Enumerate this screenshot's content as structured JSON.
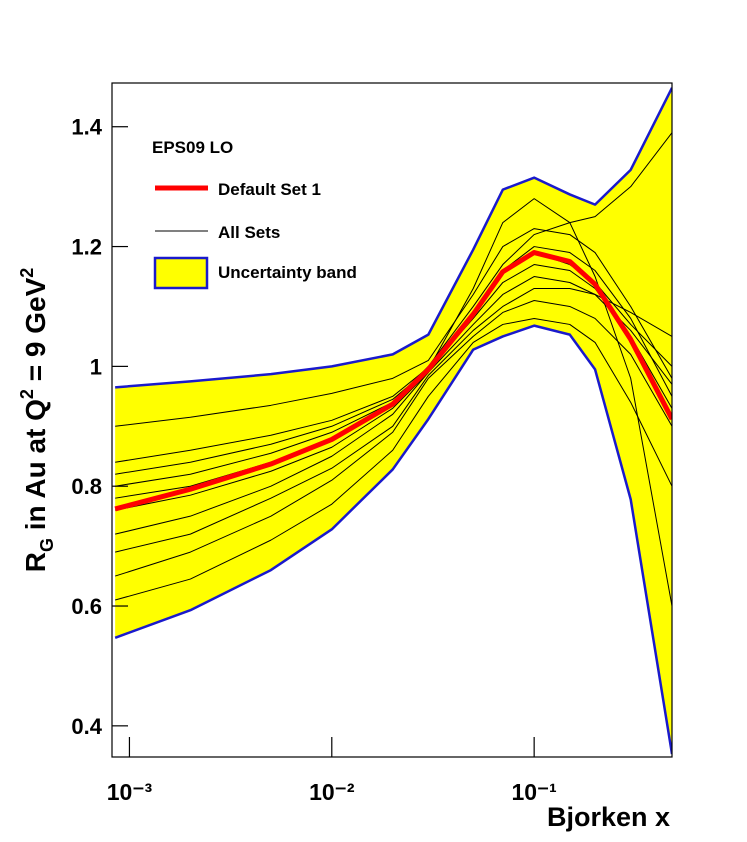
{
  "chart_data": {
    "type": "line",
    "x_label": "Bjorken x",
    "y_label": [
      "R",
      "G",
      " in Au at Q",
      "2",
      " = 9 GeV",
      "2"
    ],
    "legend_title": "EPS09 LO",
    "log_x": true,
    "x": [
      0.00085,
      0.002,
      0.005,
      0.01,
      0.02,
      0.03,
      0.05,
      0.07,
      0.1,
      0.15,
      0.2,
      0.3,
      0.48
    ],
    "xlim": [
      0.00082,
      0.48
    ],
    "xticks": [
      {
        "value": 0.001,
        "label": "10⁻³"
      },
      {
        "value": 0.01,
        "label": "10⁻²"
      },
      {
        "value": 0.1,
        "label": "10⁻¹"
      }
    ],
    "ylim": [
      0.348,
      1.473
    ],
    "yticks": [
      0.4,
      0.6,
      0.8,
      1,
      1.2,
      1.4
    ],
    "band": {
      "name": "Uncertainty band",
      "fill": "#ffff00",
      "edge": "#1a1acc",
      "upper": [
        0.965,
        0.975,
        0.987,
        1.0,
        1.02,
        1.053,
        1.195,
        1.295,
        1.315,
        1.287,
        1.27,
        1.328,
        1.465
      ],
      "lower": [
        0.547,
        0.593,
        0.66,
        0.728,
        0.828,
        0.912,
        1.028,
        1.05,
        1.068,
        1.053,
        0.995,
        0.778,
        0.353
      ]
    },
    "sets": {
      "name": "All Sets",
      "color": "#000000",
      "lines": [
        [
          0.9,
          0.915,
          0.935,
          0.955,
          0.98,
          1.01,
          1.12,
          1.2,
          1.23,
          1.22,
          1.19,
          1.1,
          0.98
        ],
        [
          0.84,
          0.86,
          0.885,
          0.91,
          0.95,
          0.998,
          1.09,
          1.16,
          1.2,
          1.19,
          1.16,
          1.08,
          0.95
        ],
        [
          0.8,
          0.82,
          0.855,
          0.89,
          0.94,
          0.995,
          1.08,
          1.14,
          1.17,
          1.16,
          1.13,
          1.05,
          0.93
        ],
        [
          0.72,
          0.75,
          0.8,
          0.85,
          0.92,
          0.99,
          1.07,
          1.12,
          1.15,
          1.14,
          1.12,
          1.06,
          0.97
        ],
        [
          0.65,
          0.69,
          0.75,
          0.81,
          0.89,
          0.98,
          1.05,
          1.09,
          1.11,
          1.1,
          1.08,
          1.02,
          0.9
        ],
        [
          0.61,
          0.645,
          0.71,
          0.77,
          0.86,
          0.95,
          1.04,
          1.07,
          1.08,
          1.07,
          1.04,
          0.94,
          0.8
        ],
        [
          0.78,
          0.8,
          0.84,
          0.88,
          0.94,
          1.0,
          1.1,
          1.17,
          1.22,
          1.24,
          1.25,
          1.3,
          1.39
        ],
        [
          0.82,
          0.84,
          0.87,
          0.9,
          0.945,
          0.995,
          1.13,
          1.24,
          1.28,
          1.24,
          1.15,
          0.98,
          0.6
        ],
        [
          0.76,
          0.785,
          0.825,
          0.865,
          0.93,
          0.99,
          1.09,
          1.16,
          1.19,
          1.17,
          1.14,
          1.07,
          1.0
        ],
        [
          0.69,
          0.72,
          0.78,
          0.83,
          0.9,
          0.985,
          1.06,
          1.1,
          1.13,
          1.13,
          1.12,
          1.09,
          1.05
        ]
      ]
    },
    "series": [
      {
        "name": "Default Set 1",
        "color": "#ff0000",
        "values": [
          0.762,
          0.795,
          0.837,
          0.878,
          0.937,
          0.995,
          1.087,
          1.158,
          1.19,
          1.175,
          1.137,
          1.045,
          0.912
        ]
      }
    ]
  }
}
